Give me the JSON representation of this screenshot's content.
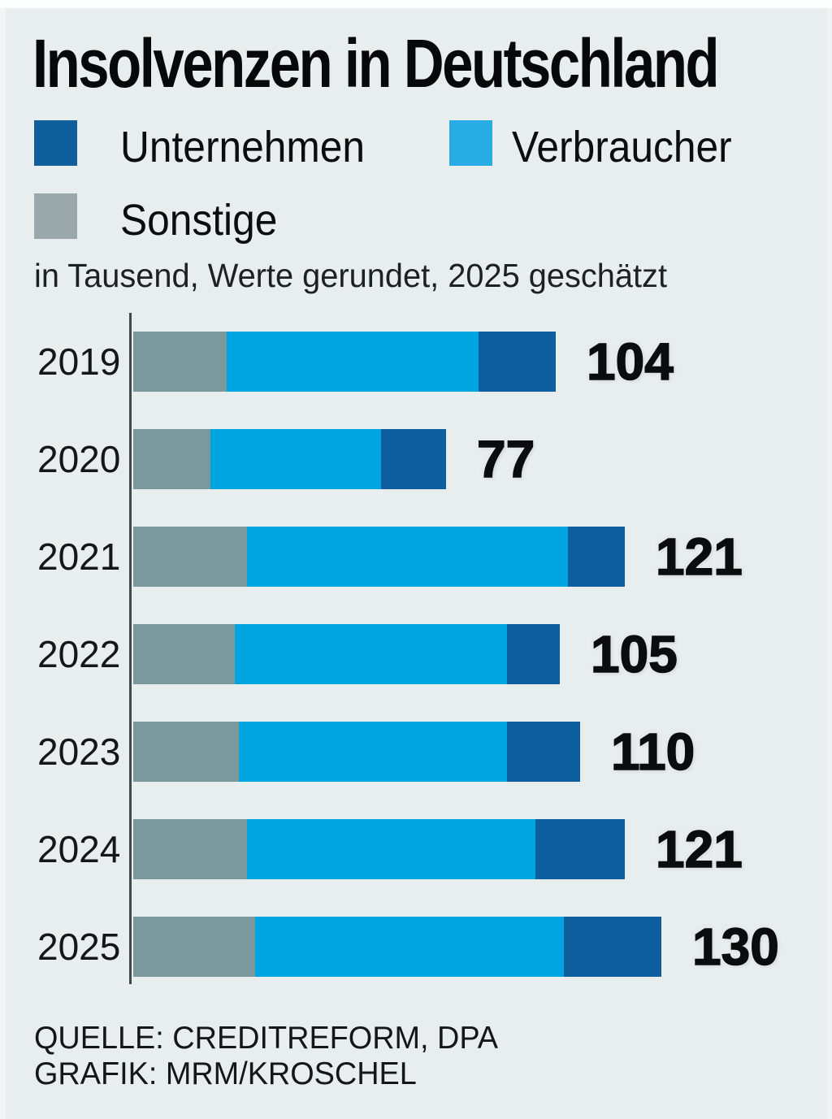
{
  "title": "Insolvenzen in Deutschland",
  "subtitle": "in Tausend, Werte gerundet, 2025 geschätzt",
  "legend": {
    "items": [
      {
        "label": "Unternehmen",
        "color": "#0e5f9c"
      },
      {
        "label": "Verbraucher",
        "color": "#27ade3"
      },
      {
        "label": "Sonstige",
        "color": "#9aa8ac"
      }
    ]
  },
  "footer": {
    "source_line": "QUELLE: CREDITREFORM, DPA",
    "credit_line": "GRAFIK: MRM/KROSCHEL"
  },
  "colors": {
    "background": "#e8edee",
    "unternehmen_bar": "#0d5f9d",
    "verbraucher_bar": "#00a4e1",
    "sonstige_bar": "#7b989d",
    "axis": "#43484b",
    "text": "#0b0d0e"
  },
  "chart_data": {
    "type": "bar",
    "orientation": "horizontal",
    "stacked": true,
    "title": "Insolvenzen in Deutschland",
    "subtitle": "in Tausend, Werte gerundet, 2025 geschätzt",
    "unit": "Tausend (thousands)",
    "note": "Werte gerundet, 2025 geschätzt",
    "categories": [
      "2019",
      "2020",
      "2021",
      "2022",
      "2023",
      "2024",
      "2025"
    ],
    "segment_order_in_bar": [
      "Sonstige",
      "Verbraucher",
      "Unternehmen"
    ],
    "series": [
      {
        "name": "Sonstige",
        "color": "#7b989d",
        "values": [
          23,
          19,
          28,
          25,
          26,
          28,
          30
        ]
      },
      {
        "name": "Verbraucher",
        "color": "#00a4e1",
        "values": [
          62,
          42,
          79,
          67,
          66,
          71,
          76
        ]
      },
      {
        "name": "Unternehmen",
        "color": "#0d5f9d",
        "values": [
          19,
          16,
          14,
          13,
          18,
          22,
          24
        ]
      }
    ],
    "totals": [
      104,
      77,
      121,
      105,
      110,
      121,
      130
    ],
    "value_labels": "total at end of each bar",
    "legend_position": "top",
    "grid": false,
    "xlim": [
      0,
      140
    ]
  }
}
